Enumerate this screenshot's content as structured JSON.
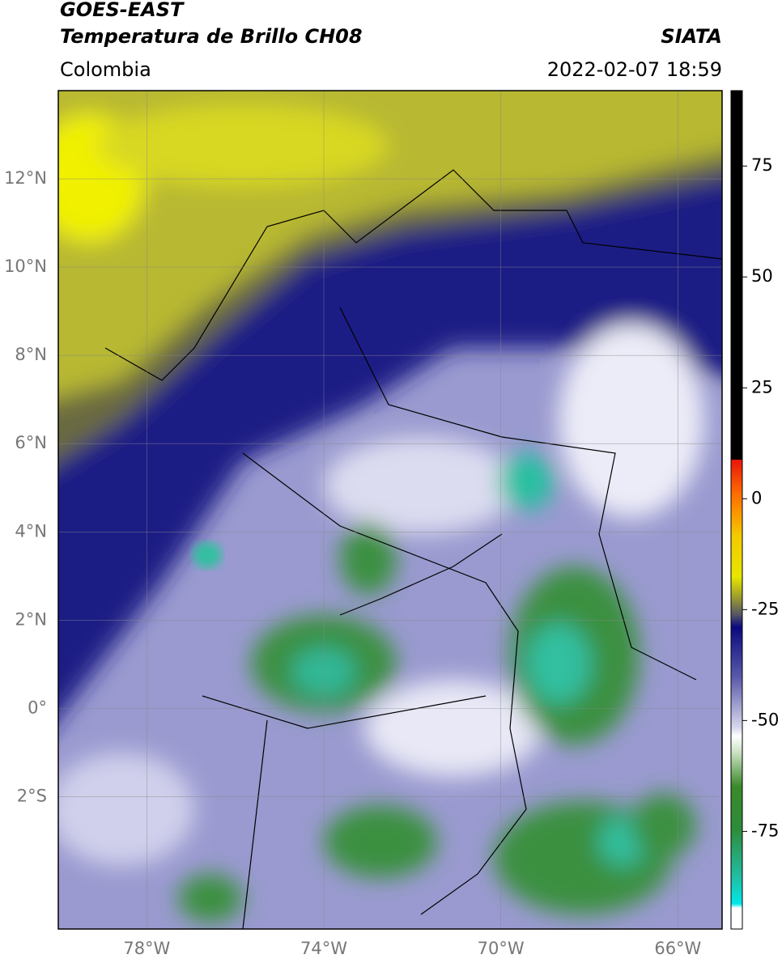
{
  "header": {
    "title_line1": "GOES-EAST",
    "title_line2": "Temperatura de Brillo CH08",
    "region": "Colombia",
    "source": "SIATA",
    "datetime": "2022-02-07 18:59"
  },
  "map": {
    "lon_range": [
      -80,
      -65
    ],
    "lat_range": [
      -5,
      14
    ],
    "lat_ticks": [
      {
        "value": 12,
        "label": "12°N"
      },
      {
        "value": 10,
        "label": "10°N"
      },
      {
        "value": 8,
        "label": "8°N"
      },
      {
        "value": 6,
        "label": "6°N"
      },
      {
        "value": 4,
        "label": "4°N"
      },
      {
        "value": 2,
        "label": "2°N"
      },
      {
        "value": 0,
        "label": "0°"
      },
      {
        "value": -2,
        "label": "2°S"
      }
    ],
    "lon_ticks": [
      {
        "value": -78,
        "label": "78°W"
      },
      {
        "value": -74,
        "label": "74°W"
      },
      {
        "value": -70,
        "label": "70°W"
      },
      {
        "value": -66,
        "label": "66°W"
      }
    ],
    "grid": true
  },
  "colorbar": {
    "range": [
      -97,
      92
    ],
    "ticks": [
      75,
      50,
      25,
      0,
      -25,
      -50,
      -75
    ]
  }
}
